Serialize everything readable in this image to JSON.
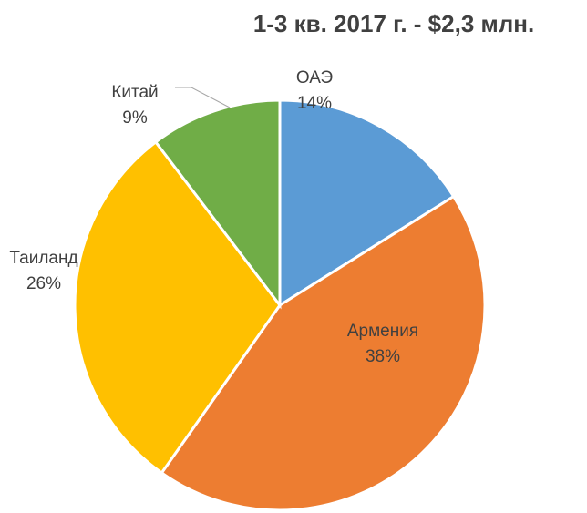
{
  "chart_data": {
    "type": "pie",
    "title": "1-3 кв. 2017 г. - $2,3 млн.",
    "categories": [
      "ОАЭ",
      "Армения",
      "Таиланд",
      "Китай"
    ],
    "values": [
      14,
      38,
      26,
      9
    ],
    "value_labels": [
      "14%",
      "38%",
      "26%",
      "9%"
    ],
    "colors": [
      "#5b9bd5",
      "#ed7d31",
      "#ffc000",
      "#70ad47"
    ]
  }
}
